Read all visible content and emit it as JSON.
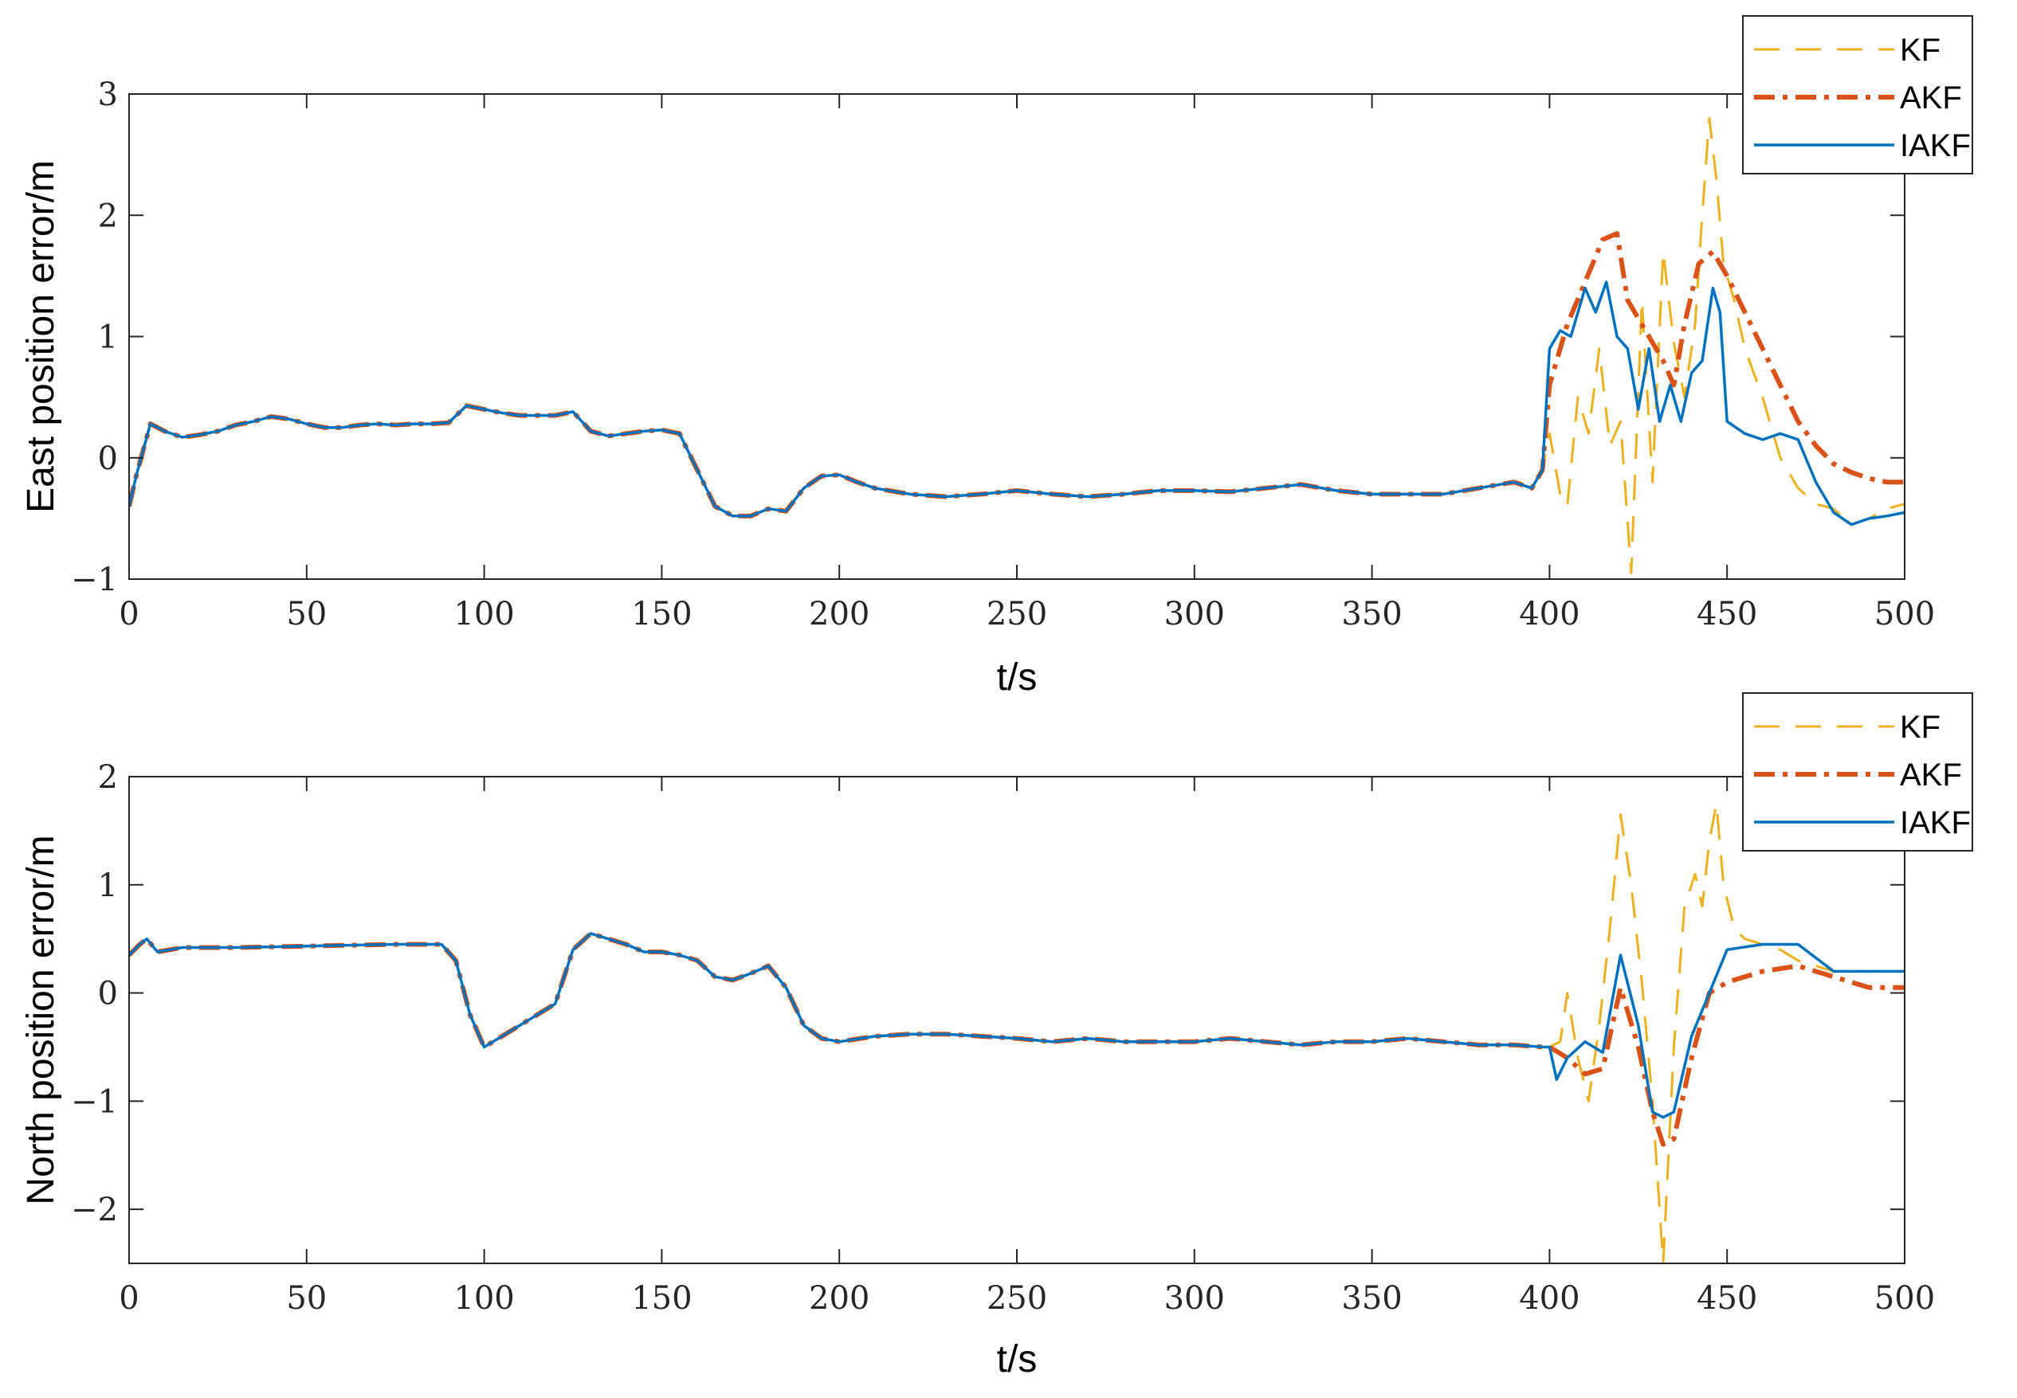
{
  "chart_data": [
    {
      "type": "line",
      "xlabel": "t/s",
      "ylabel": "East position error/m",
      "xlim": [
        0,
        500
      ],
      "ylim": [
        -1,
        3
      ],
      "xticks": [
        "0",
        "50",
        "100",
        "150",
        "200",
        "250",
        "300",
        "350",
        "400",
        "450",
        "500"
      ],
      "yticks": [
        "−1",
        "0",
        "1",
        "2",
        "3"
      ],
      "grid": false,
      "legend_position": "top-right",
      "series": [
        {
          "name": "KF",
          "color": "#EDB120",
          "style": "dashed",
          "x": [
            0,
            2,
            6,
            10,
            15,
            20,
            25,
            30,
            35,
            40,
            45,
            50,
            55,
            60,
            65,
            70,
            75,
            80,
            85,
            90,
            95,
            100,
            105,
            110,
            115,
            120,
            125,
            130,
            135,
            140,
            145,
            150,
            155,
            160,
            165,
            170,
            175,
            180,
            185,
            190,
            195,
            200,
            205,
            210,
            220,
            230,
            240,
            250,
            260,
            270,
            280,
            290,
            300,
            310,
            320,
            330,
            340,
            350,
            360,
            370,
            380,
            390,
            395,
            398,
            400,
            403,
            405,
            408,
            411,
            414,
            417,
            420,
            423,
            426,
            429,
            432,
            435,
            438,
            441,
            443,
            445,
            447,
            449,
            452,
            455,
            460,
            465,
            470,
            475,
            480,
            485,
            490,
            495,
            500
          ],
          "y": [
            -0.4,
            -0.15,
            0.28,
            0.22,
            0.17,
            0.19,
            0.22,
            0.27,
            0.3,
            0.34,
            0.32,
            0.28,
            0.25,
            0.25,
            0.27,
            0.28,
            0.27,
            0.28,
            0.28,
            0.29,
            0.43,
            0.4,
            0.37,
            0.35,
            0.35,
            0.35,
            0.38,
            0.22,
            0.18,
            0.2,
            0.22,
            0.23,
            0.2,
            -0.1,
            -0.4,
            -0.48,
            -0.48,
            -0.42,
            -0.44,
            -0.25,
            -0.15,
            -0.14,
            -0.2,
            -0.25,
            -0.3,
            -0.32,
            -0.3,
            -0.27,
            -0.3,
            -0.32,
            -0.3,
            -0.27,
            -0.27,
            -0.28,
            -0.25,
            -0.22,
            -0.27,
            -0.3,
            -0.3,
            -0.3,
            -0.25,
            -0.2,
            -0.25,
            -0.1,
            0.2,
            -0.3,
            -0.4,
            0.5,
            0.2,
            0.9,
            0.1,
            0.3,
            -0.95,
            1.3,
            -0.2,
            1.7,
            0.95,
            0.5,
            1.1,
            2.0,
            2.8,
            2.3,
            1.6,
            1.3,
            0.9,
            0.5,
            0.0,
            -0.25,
            -0.38,
            -0.42,
            -0.55,
            -0.5,
            -0.42,
            -0.38
          ]
        },
        {
          "name": "AKF",
          "color": "#D95319",
          "style": "dashdot",
          "x": [
            0,
            2,
            6,
            10,
            15,
            20,
            25,
            30,
            35,
            40,
            45,
            50,
            55,
            60,
            65,
            70,
            75,
            80,
            85,
            90,
            95,
            100,
            105,
            110,
            115,
            120,
            125,
            130,
            135,
            140,
            145,
            150,
            155,
            160,
            165,
            170,
            175,
            180,
            185,
            190,
            195,
            200,
            205,
            210,
            220,
            230,
            240,
            250,
            260,
            270,
            280,
            290,
            300,
            310,
            320,
            330,
            340,
            350,
            360,
            370,
            380,
            390,
            395,
            398,
            400,
            405,
            410,
            415,
            419,
            422,
            425,
            428,
            432,
            435,
            438,
            442,
            446,
            450,
            455,
            460,
            465,
            470,
            475,
            480,
            485,
            490,
            495,
            500
          ],
          "y": [
            -0.4,
            -0.15,
            0.28,
            0.22,
            0.17,
            0.19,
            0.22,
            0.27,
            0.3,
            0.34,
            0.32,
            0.28,
            0.25,
            0.25,
            0.27,
            0.28,
            0.27,
            0.28,
            0.28,
            0.29,
            0.43,
            0.4,
            0.37,
            0.35,
            0.35,
            0.35,
            0.38,
            0.22,
            0.18,
            0.2,
            0.22,
            0.23,
            0.2,
            -0.1,
            -0.4,
            -0.48,
            -0.48,
            -0.42,
            -0.44,
            -0.25,
            -0.15,
            -0.14,
            -0.2,
            -0.25,
            -0.3,
            -0.32,
            -0.3,
            -0.27,
            -0.3,
            -0.32,
            -0.3,
            -0.27,
            -0.27,
            -0.28,
            -0.25,
            -0.22,
            -0.27,
            -0.3,
            -0.3,
            -0.3,
            -0.25,
            -0.2,
            -0.25,
            -0.1,
            0.6,
            1.1,
            1.45,
            1.8,
            1.85,
            1.3,
            1.15,
            1.0,
            0.8,
            0.6,
            1.1,
            1.6,
            1.7,
            1.5,
            1.2,
            0.9,
            0.6,
            0.3,
            0.1,
            -0.05,
            -0.12,
            -0.17,
            -0.2,
            -0.2
          ]
        },
        {
          "name": "IAKF",
          "color": "#0072BD",
          "style": "solid",
          "x": [
            0,
            2,
            6,
            10,
            15,
            20,
            25,
            30,
            35,
            40,
            45,
            50,
            55,
            60,
            65,
            70,
            75,
            80,
            85,
            90,
            95,
            100,
            105,
            110,
            115,
            120,
            125,
            130,
            135,
            140,
            145,
            150,
            155,
            160,
            165,
            170,
            175,
            180,
            185,
            190,
            195,
            200,
            205,
            210,
            220,
            230,
            240,
            250,
            260,
            270,
            280,
            290,
            300,
            310,
            320,
            330,
            340,
            350,
            360,
            370,
            380,
            390,
            395,
            398,
            400,
            403,
            406,
            410,
            413,
            416,
            419,
            422,
            425,
            428,
            431,
            434,
            437,
            440,
            443,
            446,
            448,
            450,
            455,
            460,
            465,
            470,
            475,
            480,
            485,
            490,
            495,
            500
          ],
          "y": [
            -0.4,
            -0.15,
            0.28,
            0.22,
            0.17,
            0.19,
            0.22,
            0.27,
            0.3,
            0.34,
            0.32,
            0.28,
            0.25,
            0.25,
            0.27,
            0.28,
            0.27,
            0.28,
            0.28,
            0.29,
            0.43,
            0.4,
            0.37,
            0.35,
            0.35,
            0.35,
            0.38,
            0.22,
            0.18,
            0.2,
            0.22,
            0.23,
            0.2,
            -0.1,
            -0.4,
            -0.48,
            -0.48,
            -0.42,
            -0.44,
            -0.25,
            -0.15,
            -0.14,
            -0.2,
            -0.25,
            -0.3,
            -0.32,
            -0.3,
            -0.27,
            -0.3,
            -0.32,
            -0.3,
            -0.27,
            -0.27,
            -0.28,
            -0.25,
            -0.22,
            -0.27,
            -0.3,
            -0.3,
            -0.3,
            -0.25,
            -0.2,
            -0.25,
            -0.1,
            0.9,
            1.05,
            1.0,
            1.4,
            1.2,
            1.45,
            1.0,
            0.9,
            0.4,
            0.9,
            0.3,
            0.6,
            0.3,
            0.7,
            0.8,
            1.4,
            1.2,
            0.3,
            0.2,
            0.15,
            0.2,
            0.15,
            -0.2,
            -0.45,
            -0.55,
            -0.5,
            -0.48,
            -0.45
          ]
        }
      ]
    },
    {
      "type": "line",
      "xlabel": "t/s",
      "ylabel": "North position error/m",
      "xlim": [
        0,
        500
      ],
      "ylim": [
        -2.5,
        2
      ],
      "xticks": [
        "0",
        "50",
        "100",
        "150",
        "200",
        "250",
        "300",
        "350",
        "400",
        "450",
        "500"
      ],
      "yticks": [
        "−2",
        "−1",
        "0",
        "1",
        "2"
      ],
      "grid": false,
      "legend_position": "top-right",
      "series": [
        {
          "name": "KF",
          "color": "#EDB120",
          "style": "dashed",
          "x": [
            0,
            3,
            5,
            8,
            15,
            30,
            45,
            60,
            75,
            88,
            92,
            96,
            100,
            105,
            110,
            115,
            120,
            125,
            130,
            135,
            140,
            145,
            150,
            155,
            160,
            165,
            170,
            175,
            180,
            185,
            190,
            195,
            200,
            210,
            220,
            230,
            240,
            250,
            260,
            270,
            280,
            290,
            300,
            310,
            320,
            330,
            340,
            350,
            360,
            370,
            380,
            390,
            398,
            400,
            403,
            405,
            408,
            411,
            414,
            417,
            420,
            423,
            426,
            429,
            432,
            435,
            438,
            441,
            443,
            445,
            447,
            449,
            452,
            455,
            460,
            465,
            470,
            475,
            480,
            490,
            500
          ],
          "y": [
            0.35,
            0.45,
            0.5,
            0.38,
            0.42,
            0.42,
            0.43,
            0.44,
            0.45,
            0.45,
            0.3,
            -0.2,
            -0.5,
            -0.4,
            -0.3,
            -0.2,
            -0.1,
            0.4,
            0.55,
            0.5,
            0.45,
            0.38,
            0.38,
            0.35,
            0.3,
            0.15,
            0.12,
            0.18,
            0.25,
            0.05,
            -0.3,
            -0.42,
            -0.45,
            -0.4,
            -0.38,
            -0.38,
            -0.4,
            -0.42,
            -0.45,
            -0.42,
            -0.45,
            -0.45,
            -0.45,
            -0.42,
            -0.45,
            -0.48,
            -0.45,
            -0.45,
            -0.42,
            -0.45,
            -0.48,
            -0.48,
            -0.5,
            -0.5,
            -0.45,
            0.0,
            -0.6,
            -1.0,
            -0.3,
            0.6,
            1.65,
            1.0,
            0.1,
            -1.0,
            -2.5,
            -0.5,
            0.8,
            1.1,
            0.8,
            1.4,
            1.75,
            1.0,
            0.6,
            0.5,
            0.45,
            0.4,
            0.3,
            0.25,
            0.2,
            0.2,
            0.2
          ]
        },
        {
          "name": "AKF",
          "color": "#D95319",
          "style": "dashdot",
          "x": [
            0,
            3,
            5,
            8,
            15,
            30,
            45,
            60,
            75,
            88,
            92,
            96,
            100,
            105,
            110,
            115,
            120,
            125,
            130,
            135,
            140,
            145,
            150,
            155,
            160,
            165,
            170,
            175,
            180,
            185,
            190,
            195,
            200,
            210,
            220,
            230,
            240,
            250,
            260,
            270,
            280,
            290,
            300,
            310,
            320,
            330,
            340,
            350,
            360,
            370,
            380,
            390,
            398,
            400,
            405,
            410,
            415,
            420,
            425,
            429,
            432,
            435,
            440,
            445,
            450,
            460,
            470,
            480,
            490,
            500
          ],
          "y": [
            0.35,
            0.45,
            0.5,
            0.38,
            0.42,
            0.42,
            0.43,
            0.44,
            0.45,
            0.45,
            0.3,
            -0.2,
            -0.5,
            -0.4,
            -0.3,
            -0.2,
            -0.1,
            0.4,
            0.55,
            0.5,
            0.45,
            0.38,
            0.38,
            0.35,
            0.3,
            0.15,
            0.12,
            0.18,
            0.25,
            0.05,
            -0.3,
            -0.42,
            -0.45,
            -0.4,
            -0.38,
            -0.38,
            -0.4,
            -0.42,
            -0.45,
            -0.42,
            -0.45,
            -0.45,
            -0.45,
            -0.42,
            -0.45,
            -0.48,
            -0.45,
            -0.45,
            -0.42,
            -0.45,
            -0.48,
            -0.48,
            -0.5,
            -0.5,
            -0.6,
            -0.75,
            -0.7,
            0.05,
            -0.5,
            -1.1,
            -1.4,
            -1.35,
            -0.6,
            0.0,
            0.1,
            0.2,
            0.25,
            0.15,
            0.05,
            0.05
          ]
        },
        {
          "name": "IAKF",
          "color": "#0072BD",
          "style": "solid",
          "x": [
            0,
            3,
            5,
            8,
            15,
            30,
            45,
            60,
            75,
            88,
            92,
            96,
            100,
            105,
            110,
            115,
            120,
            125,
            130,
            135,
            140,
            145,
            150,
            155,
            160,
            165,
            170,
            175,
            180,
            185,
            190,
            195,
            200,
            210,
            220,
            230,
            240,
            250,
            260,
            270,
            280,
            290,
            300,
            310,
            320,
            330,
            340,
            350,
            360,
            370,
            380,
            390,
            398,
            400,
            402,
            405,
            410,
            415,
            420,
            425,
            429,
            432,
            435,
            440,
            445,
            450,
            460,
            470,
            480,
            490,
            498,
            500
          ],
          "y": [
            0.35,
            0.45,
            0.5,
            0.38,
            0.42,
            0.42,
            0.43,
            0.44,
            0.45,
            0.45,
            0.3,
            -0.2,
            -0.5,
            -0.4,
            -0.3,
            -0.2,
            -0.1,
            0.4,
            0.55,
            0.5,
            0.45,
            0.38,
            0.38,
            0.35,
            0.3,
            0.15,
            0.12,
            0.18,
            0.25,
            0.05,
            -0.3,
            -0.42,
            -0.45,
            -0.4,
            -0.38,
            -0.38,
            -0.4,
            -0.42,
            -0.45,
            -0.42,
            -0.45,
            -0.45,
            -0.45,
            -0.42,
            -0.45,
            -0.48,
            -0.45,
            -0.45,
            -0.42,
            -0.45,
            -0.48,
            -0.48,
            -0.5,
            -0.5,
            -0.8,
            -0.6,
            -0.45,
            -0.55,
            0.35,
            -0.3,
            -1.1,
            -1.15,
            -1.1,
            -0.4,
            0.0,
            0.4,
            0.45,
            0.45,
            0.2,
            0.2,
            0.2,
            0.2
          ]
        }
      ]
    }
  ]
}
